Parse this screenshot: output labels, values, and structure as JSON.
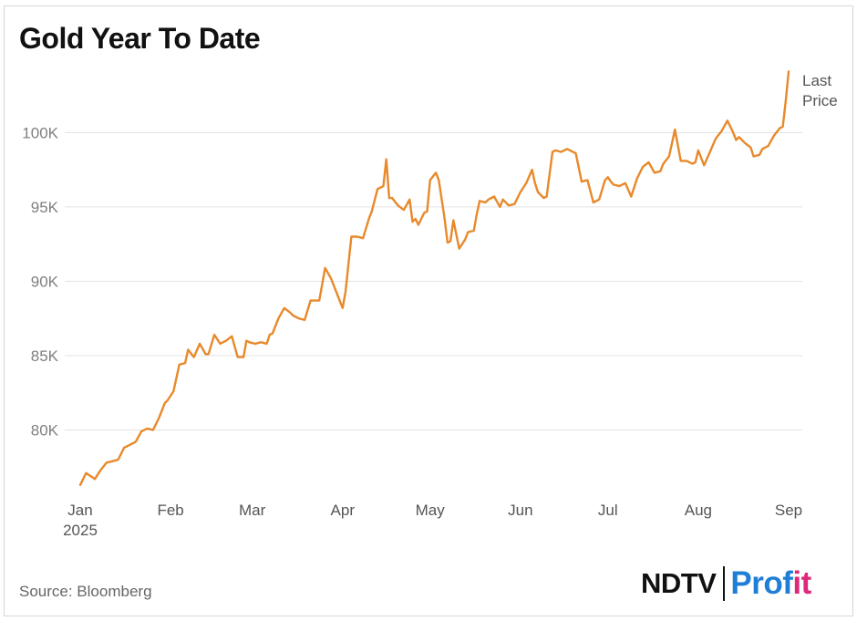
{
  "title": "Gold Year To Date",
  "source": "Source: Bloomberg",
  "logo": {
    "part1": "NDTV",
    "part2": "Prof",
    "part3": "it"
  },
  "annotation": {
    "line1": "Last",
    "line2": "Price"
  },
  "colors": {
    "line": "#e8892b",
    "grid": "#e3e3e3",
    "logo_blue": "#1f7fd6",
    "logo_pink": "#e0287a"
  },
  "chart_data": {
    "type": "line",
    "title": "Gold Year To Date",
    "xlabel": "",
    "ylabel": "",
    "ylim": [
      75800,
      104500
    ],
    "x_ticks": [
      {
        "label": "Jan",
        "sub": "2025",
        "day": 0
      },
      {
        "label": "Feb",
        "sub": "",
        "day": 31
      },
      {
        "label": "Mar",
        "sub": "",
        "day": 59
      },
      {
        "label": "Apr",
        "sub": "",
        "day": 90
      },
      {
        "label": "May",
        "sub": "",
        "day": 120
      },
      {
        "label": "Jun",
        "sub": "",
        "day": 151
      },
      {
        "label": "Jul",
        "sub": "",
        "day": 181
      },
      {
        "label": "Aug",
        "sub": "",
        "day": 212
      },
      {
        "label": "Sep",
        "sub": "",
        "day": 243
      }
    ],
    "y_ticks": [
      {
        "label": "80K",
        "value": 80000
      },
      {
        "label": "85K",
        "value": 85000
      },
      {
        "label": "90K",
        "value": 90000
      },
      {
        "label": "95K",
        "value": 95000
      },
      {
        "label": "100K",
        "value": 100000
      }
    ],
    "grid": true,
    "series": [
      {
        "name": "",
        "x": [
          0,
          2,
          5,
          7,
          9,
          11,
          13,
          15,
          17,
          19,
          21,
          23,
          25,
          27,
          29,
          30,
          32,
          34,
          36,
          37,
          39,
          41,
          43,
          44,
          46,
          48,
          50,
          52,
          54,
          56,
          57,
          58,
          60,
          62,
          64,
          65,
          66,
          68,
          70,
          72,
          73,
          75,
          77,
          79,
          81,
          82,
          84,
          86,
          88,
          90,
          91,
          93,
          95,
          97,
          99,
          100,
          102,
          104,
          105,
          106,
          107,
          109,
          111,
          113,
          114,
          115,
          116,
          118,
          119,
          120,
          122,
          123,
          125,
          126,
          127,
          128,
          130,
          132,
          133,
          135,
          136,
          137,
          139,
          140,
          142,
          144,
          145,
          147,
          149,
          151,
          153,
          155,
          156,
          157,
          159,
          160,
          162,
          163,
          165,
          167,
          169,
          170,
          172,
          174,
          176,
          178,
          180,
          181,
          182,
          183,
          185,
          187,
          189,
          191,
          193,
          195,
          197,
          199,
          200,
          202,
          204,
          206,
          208,
          210,
          211,
          212,
          214,
          216,
          218,
          220,
          222,
          224,
          225,
          226,
          227,
          228,
          230,
          231,
          233,
          234,
          236,
          238,
          240,
          241,
          242,
          243
        ],
        "y": [
          76300,
          77100,
          76700,
          77300,
          77800,
          77900,
          78000,
          78800,
          79000,
          79200,
          79900,
          80100,
          80000,
          80800,
          81800,
          82000,
          82600,
          84400,
          84500,
          85400,
          84900,
          85800,
          85100,
          85100,
          86400,
          85800,
          86000,
          86300,
          84900,
          84900,
          86000,
          85900,
          85800,
          85900,
          85800,
          86400,
          86500,
          87500,
          88200,
          87900,
          87700,
          87500,
          87400,
          88700,
          88700,
          88700,
          90900,
          90200,
          89200,
          88200,
          89300,
          93000,
          93000,
          92900,
          94200,
          94700,
          96200,
          96400,
          98200,
          95600,
          95600,
          95100,
          94800,
          95500,
          94000,
          94200,
          93800,
          94600,
          94700,
          96800,
          97300,
          96800,
          94200,
          92600,
          92700,
          94100,
          92200,
          92800,
          93300,
          93400,
          94500,
          95400,
          95300,
          95500,
          95700,
          95000,
          95500,
          95100,
          95200,
          96000,
          96600,
          97500,
          96600,
          96000,
          95600,
          95700,
          98700,
          98800,
          98700,
          98900,
          98700,
          98600,
          96700,
          96800,
          95300,
          95500,
          96800,
          97000,
          96700,
          96500,
          96400,
          96600,
          95700,
          96900,
          97700,
          98000,
          97300,
          97400,
          97900,
          98400,
          100200,
          98100,
          98100,
          97900,
          98000,
          98800,
          97800,
          98700,
          99600,
          100100,
          100800,
          100000,
          99500,
          99700,
          99500,
          99300,
          99000,
          98400,
          98500,
          98900,
          99100,
          99800,
          100300,
          100400,
          102100,
          104100
        ]
      }
    ]
  }
}
